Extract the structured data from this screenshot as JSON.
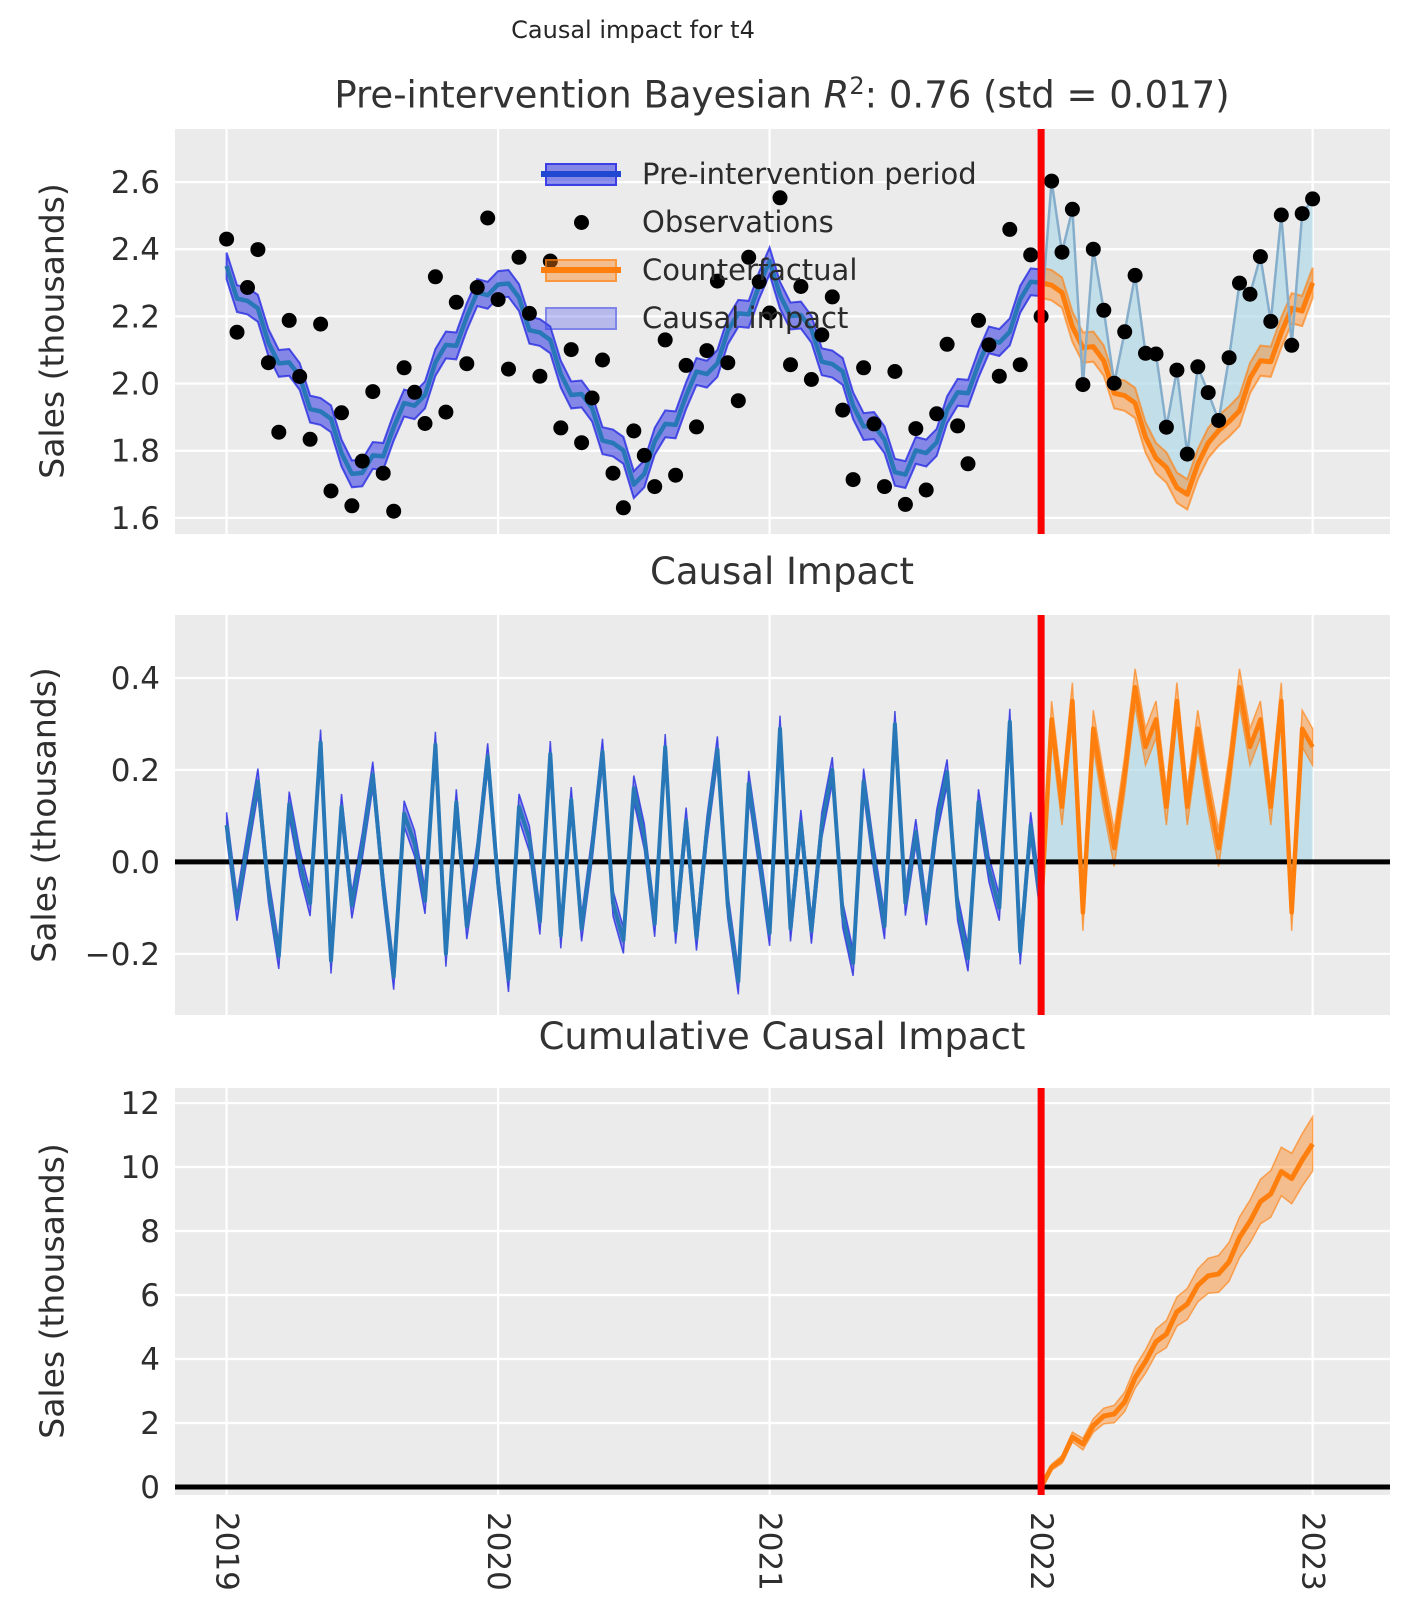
{
  "figure": {
    "suptitle": "Causal impact for t4"
  },
  "panels": {
    "top": {
      "title_prefix": "Pre-intervention Bayesian ",
      "title_r": "R",
      "title_sup": "2",
      "title_suffix": ": 0.76 (std = 0.017)",
      "ylabel": "Sales (thousands)"
    },
    "middle": {
      "title": "Causal Impact",
      "ylabel": "Sales (thousands)"
    },
    "bottom": {
      "title": "Cumulative Causal Impact",
      "ylabel": "Sales (thousands)"
    }
  },
  "legend": {
    "items": [
      {
        "label": "Pre-intervention period",
        "marker": "blue-band-line"
      },
      {
        "label": "Observations",
        "marker": "black-dot"
      },
      {
        "label": "Counterfactual",
        "marker": "orange-band-line"
      },
      {
        "label": "Causal impact",
        "marker": "lightblue-patch"
      }
    ]
  },
  "colors": {
    "panel_background": "#EBEBEB",
    "grid": "#FFFFFF",
    "pre_line": "#2878B8",
    "pre_band_fill": "rgba(30,35,225,0.5)",
    "pre_band_edge": "rgba(30,35,225,0.75)",
    "legend_blue_line": "#2148D1",
    "counterfactual_line": "#FF7F0E",
    "counterfactual_band_fill": "rgba(255,127,14,0.42)",
    "counterfactual_band_edge": "rgba(255,127,14,0.65)",
    "causal_impact_fill": "rgba(173,216,230,0.66)",
    "post_observed_line": "#86AECB",
    "observation_dot": "#000000",
    "intervention_line": "#FB0000",
    "zero_line": "#000000",
    "tick_text": "#2E2E2E"
  },
  "chart_data": {
    "type": "line",
    "title": "Causal impact for t4",
    "subtitle": "Pre-intervention Bayesian R2: 0.76 (std = 0.017)",
    "x_start": 2019.0,
    "x_step_years": 0.038461538,
    "intervention_x": 2022.0,
    "xlim": [
      2018.81,
      2023.285
    ],
    "xticks": [
      2019,
      2020,
      2021,
      2022,
      2023
    ],
    "xtick_labels": [
      "2019",
      "2020",
      "2021",
      "2022",
      "2023"
    ],
    "panels": [
      {
        "name": "observed-vs-counterfactual",
        "ylabel": "Sales (thousands)",
        "ylim": [
          1.552,
          2.758
        ],
        "ytick_values": [
          2.6,
          2.4,
          2.2,
          2.0,
          1.8,
          1.6
        ],
        "ytick_labels": [
          "2.6",
          "2.4",
          "2.2",
          "2.0",
          "1.8",
          "1.6"
        ]
      },
      {
        "name": "pointwise-causal-impact",
        "ylabel": "Sales (thousands)",
        "ylim": [
          -0.333,
          0.537
        ],
        "ytick_values": [
          0.4,
          0.2,
          0.0,
          -0.2
        ],
        "ytick_labels": [
          "0.4",
          "0.2",
          "0.0",
          "−0.2"
        ]
      },
      {
        "name": "cumulative-causal-impact",
        "ylabel": "Sales (thousands)",
        "ylim": [
          -0.25,
          12.47
        ],
        "ytick_values": [
          12,
          10,
          8,
          6,
          4,
          2,
          0
        ],
        "ytick_labels": [
          "12",
          "10",
          "8",
          "6",
          "4",
          "2",
          "0"
        ]
      }
    ],
    "series": {
      "pre_median": [
        2.35,
        2.253,
        2.246,
        2.224,
        2.122,
        2.06,
        2.063,
        2.021,
        1.924,
        1.917,
        1.895,
        1.793,
        1.731,
        1.734,
        1.786,
        1.783,
        1.87,
        1.942,
        1.934,
        1.966,
        2.063,
        2.115,
        2.112,
        2.199,
        2.271,
        2.263,
        2.295,
        2.298,
        2.256,
        2.159,
        2.152,
        2.13,
        2.028,
        1.966,
        1.969,
        1.927,
        1.83,
        1.823,
        1.801,
        1.699,
        1.731,
        1.828,
        1.88,
        1.877,
        1.964,
        2.036,
        2.028,
        2.06,
        2.157,
        2.209,
        2.206,
        2.293,
        2.365,
        2.263,
        2.201,
        2.204,
        2.162,
        2.065,
        2.058,
        2.036,
        1.934,
        1.872,
        1.875,
        1.833,
        1.736,
        1.729,
        1.801,
        1.793,
        1.825,
        1.922,
        1.974,
        1.971,
        2.058,
        2.13,
        2.122,
        2.154,
        2.251,
        2.303,
        2.3
      ],
      "pre_band_halfwidth": 0.04,
      "observations": [
        2.43,
        2.153,
        2.286,
        2.399,
        2.062,
        1.855,
        2.188,
        2.021,
        1.834,
        2.177,
        1.68,
        1.913,
        1.636,
        1.769,
        1.976,
        1.733,
        1.62,
        2.047,
        1.974,
        1.881,
        2.318,
        1.915,
        2.242,
        2.059,
        2.286,
        2.493,
        2.25,
        2.043,
        2.376,
        2.209,
        2.022,
        2.365,
        1.868,
        2.101,
        1.824,
        1.957,
        2.07,
        1.733,
        1.63,
        1.859,
        1.786,
        1.693,
        2.13,
        1.727,
        2.054,
        1.871,
        2.098,
        2.305,
        2.062,
        1.949,
        2.376,
        2.303,
        2.21,
        2.553,
        2.056,
        2.289,
        2.012,
        2.145,
        2.258,
        1.921,
        1.714,
        2.047,
        1.88,
        1.693,
        2.036,
        1.64,
        1.866,
        1.683,
        1.91,
        2.117,
        1.874,
        1.761,
        2.188,
        2.115,
        2.022,
        2.459,
        2.056,
        2.383,
        2.2,
        2.603,
        2.391,
        2.519,
        1.997,
        2.4,
        2.218,
        2.001,
        2.154,
        2.322,
        2.09,
        2.088,
        1.87,
        2.04,
        1.79,
        2.05,
        1.973,
        1.89,
        2.077,
        2.299,
        2.266,
        2.378,
        2.185,
        2.502,
        2.114,
        2.506,
        2.55
      ],
      "counterfactual_median": [
        2.3,
        2.293,
        2.271,
        2.169,
        2.107,
        2.11,
        2.068,
        1.971,
        1.964,
        1.942,
        1.84,
        1.778,
        1.75,
        1.69,
        1.67,
        1.76,
        1.823,
        1.86,
        1.887,
        1.919,
        2.016,
        2.068,
        2.065,
        2.152,
        2.224,
        2.216,
        2.3
      ],
      "counterfactual_band_halfwidth": 0.045,
      "impact_band_halfwidth_pre": 0.028,
      "impact_band_halfwidth_post": 0.04,
      "cumulative_band_halfwidth_start": 0.06,
      "cumulative_band_halfwidth_end": 0.85,
      "weeks_per_step": 2
    }
  }
}
